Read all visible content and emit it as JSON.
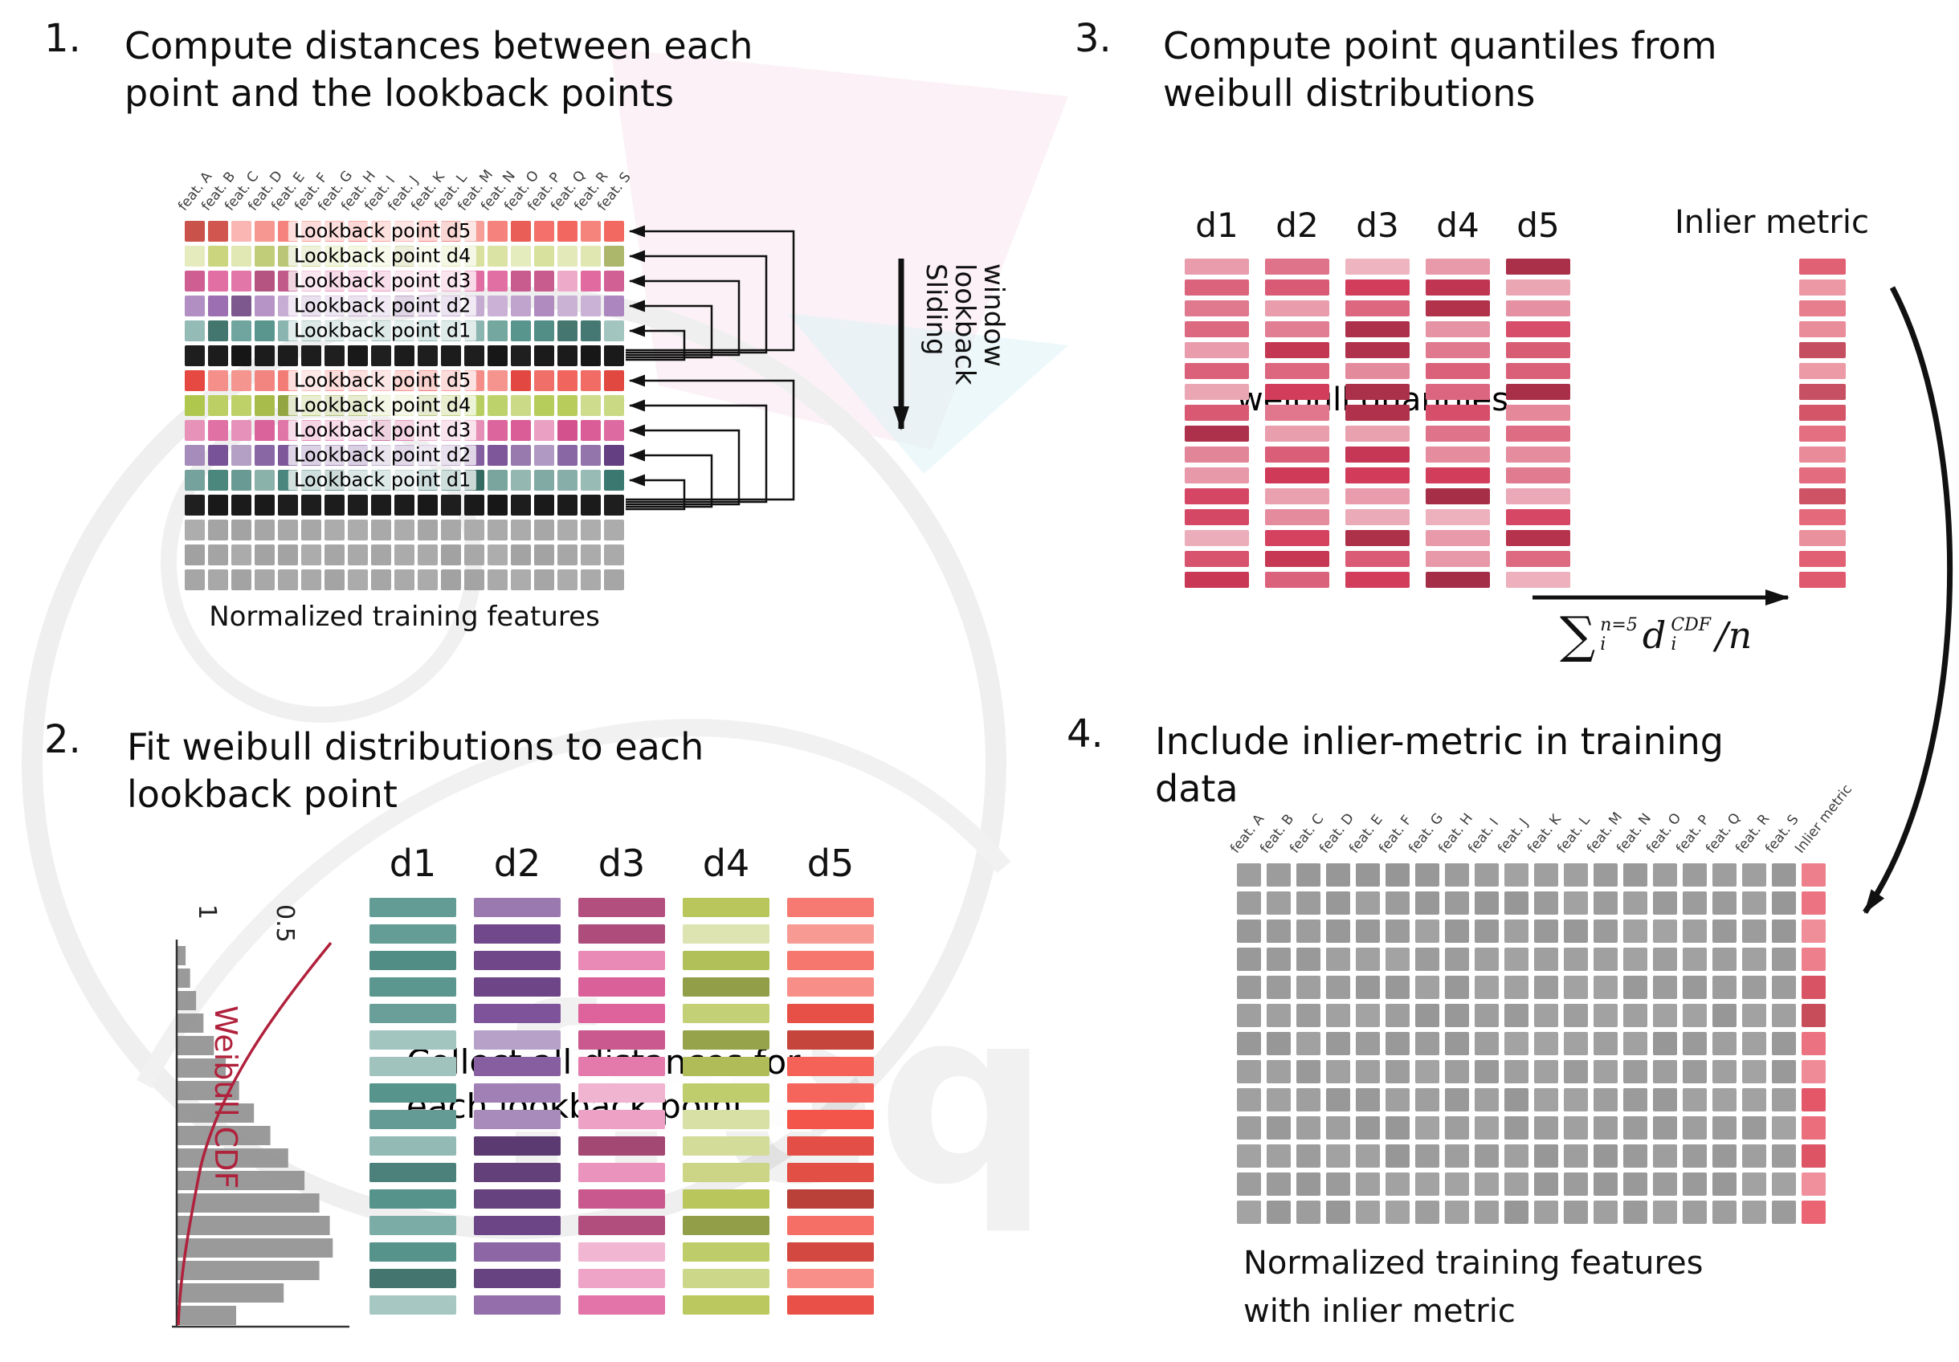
{
  "watermark": {
    "text": "freq"
  },
  "feature_columns": [
    "feat. A",
    "feat. B",
    "feat. C",
    "feat. D",
    "feat. E",
    "feat. F",
    "feat. G",
    "feat. H",
    "feat. I",
    "feat. J",
    "feat. K",
    "feat. L",
    "feat. M",
    "feat. N",
    "feat. O",
    "feat. P",
    "feat. Q",
    "feat. R",
    "feat. S"
  ],
  "panel1": {
    "number": "1.",
    "title_line1": "Compute distances between each",
    "title_line2": "point and the lookback points",
    "caption": "Normalized training features",
    "sliding_words": [
      "Sliding",
      "lookback",
      "window"
    ],
    "colors": {
      "d5": "#f2635b",
      "d4": "#ccd87f",
      "d3": "#e0679f",
      "d2": "#9a6cb0",
      "d1": "#55938b",
      "d5b": "#ee4c44",
      "d4b": "#b2c94f",
      "d3b": "#d85492",
      "d2b": "#6f4690",
      "d1b": "#3e7d74",
      "black": "#161616",
      "gray": "#a6a6a6"
    },
    "rows": [
      {
        "type": "d5",
        "label": "Lookback point d5"
      },
      {
        "type": "d4",
        "label": "Lookback point d4"
      },
      {
        "type": "d3",
        "label": "Lookback point d3"
      },
      {
        "type": "d2",
        "label": "Lookback point d2"
      },
      {
        "type": "d1",
        "label": "Lookback point d1"
      },
      {
        "type": "black"
      },
      {
        "type": "d5b",
        "label": "Lookback point d5"
      },
      {
        "type": "d4b",
        "label": "Lookback point d4"
      },
      {
        "type": "d3b",
        "label": "Lookback point d3"
      },
      {
        "type": "d2b",
        "label": "Lookback point d2"
      },
      {
        "type": "d1b",
        "label": "Lookback point d1"
      },
      {
        "type": "black"
      },
      {
        "type": "gray"
      },
      {
        "type": "gray"
      },
      {
        "type": "gray"
      }
    ]
  },
  "panel2": {
    "number": "2.",
    "title_line1": "Fit weibull distributions to each",
    "title_line2": "lookback point",
    "plot": {
      "ylabel": "Weibull CDF",
      "tick_labels": [
        "1",
        "0.5"
      ],
      "curve_color": "#b0213c",
      "bar_color": "#8f8f8f",
      "hist": [
        6,
        9,
        13,
        18,
        25,
        33,
        42,
        52,
        63,
        75,
        86,
        96,
        103,
        105,
        96,
        72,
        40
      ]
    },
    "columns": [
      {
        "label": "d1",
        "color": "#55938b"
      },
      {
        "label": "d2",
        "color": "#7b4f98"
      },
      {
        "label": "d3",
        "color": "#e0639e"
      },
      {
        "label": "d4",
        "color": "#b9c75c"
      },
      {
        "label": "d5",
        "color": "#f4554b"
      }
    ],
    "bars_per_column": 16,
    "overlay_line1": "Collect all distances for",
    "overlay_line2": "each lookback point"
  },
  "panel3": {
    "number": "3.",
    "title_line1": "Compute point quantiles from",
    "title_line2": "weibull distributions",
    "column_labels": [
      "d1",
      "d2",
      "d3",
      "d4",
      "d5"
    ],
    "bar_color": "#d23b5a",
    "bars_per_column": 16,
    "overlay": "weibull quantiles",
    "inlier_label": "Inlier metric",
    "inlier_color": "#e05a6e",
    "formula": {
      "sum": "∑",
      "sum_sup": "n=5",
      "sum_sub": "i",
      "term": "d",
      "term_sup": "CDF",
      "term_sub": "i",
      "tail": "/n"
    }
  },
  "panel4": {
    "number": "4.",
    "title_line1": "Include inlier-metric in training",
    "title_line2": "data",
    "inlier_header": "Inlier metric",
    "cell_color": "#9b9b9b",
    "inlier_color": "#e8596a",
    "rows": 13,
    "caption_line1": "Normalized training features",
    "caption_line2": "with inlier metric"
  }
}
